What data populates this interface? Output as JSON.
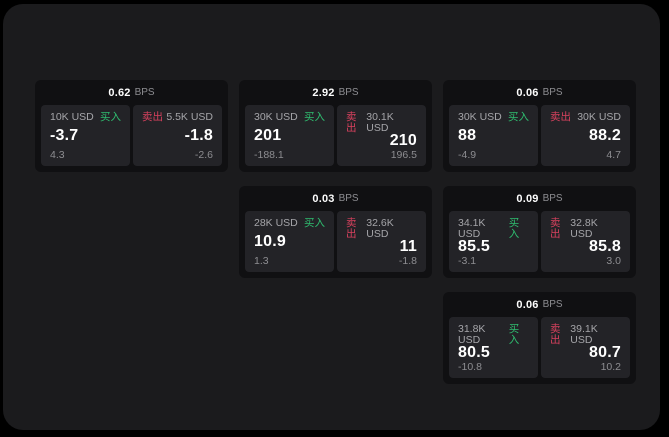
{
  "labels": {
    "bps_unit": "BPS",
    "buy": "买入",
    "sell": "卖出"
  },
  "colors": {
    "outer_bg": "#000000",
    "panel_bg": "#1b1b1d",
    "card_bg": "#101012",
    "tile_bg": "#232327",
    "buy_accent": "#2fbe70",
    "sell_accent": "#d8415e",
    "text_primary": "#ffffff",
    "text_secondary": "#8d8d91"
  },
  "cards": [
    {
      "bps": "0.62",
      "buy": {
        "amount": "10K USD",
        "price": "-3.7",
        "delta": "4.3"
      },
      "sell": {
        "amount": "5.5K USD",
        "price": "-1.8",
        "delta": "-2.6"
      }
    },
    {
      "bps": "2.92",
      "buy": {
        "amount": "30K USD",
        "price": "201",
        "delta": "-188.1"
      },
      "sell": {
        "amount": "30.1K USD",
        "price": "210",
        "delta": "196.5"
      }
    },
    {
      "bps": "0.06",
      "buy": {
        "amount": "30K USD",
        "price": "88",
        "delta": "-4.9"
      },
      "sell": {
        "amount": "30K USD",
        "price": "88.2",
        "delta": "4.7"
      }
    },
    {
      "bps": "0.03",
      "buy": {
        "amount": "28K USD",
        "price": "10.9",
        "delta": "1.3"
      },
      "sell": {
        "amount": "32.6K USD",
        "price": "11",
        "delta": "-1.8"
      }
    },
    {
      "bps": "0.09",
      "buy": {
        "amount": "34.1K USD",
        "price": "85.5",
        "delta": "-3.1"
      },
      "sell": {
        "amount": "32.8K USD",
        "price": "85.8",
        "delta": "3.0"
      }
    },
    {
      "bps": "0.06",
      "buy": {
        "amount": "31.8K USD",
        "price": "80.5",
        "delta": "-10.8"
      },
      "sell": {
        "amount": "39.1K USD",
        "price": "80.7",
        "delta": "10.2"
      }
    }
  ]
}
